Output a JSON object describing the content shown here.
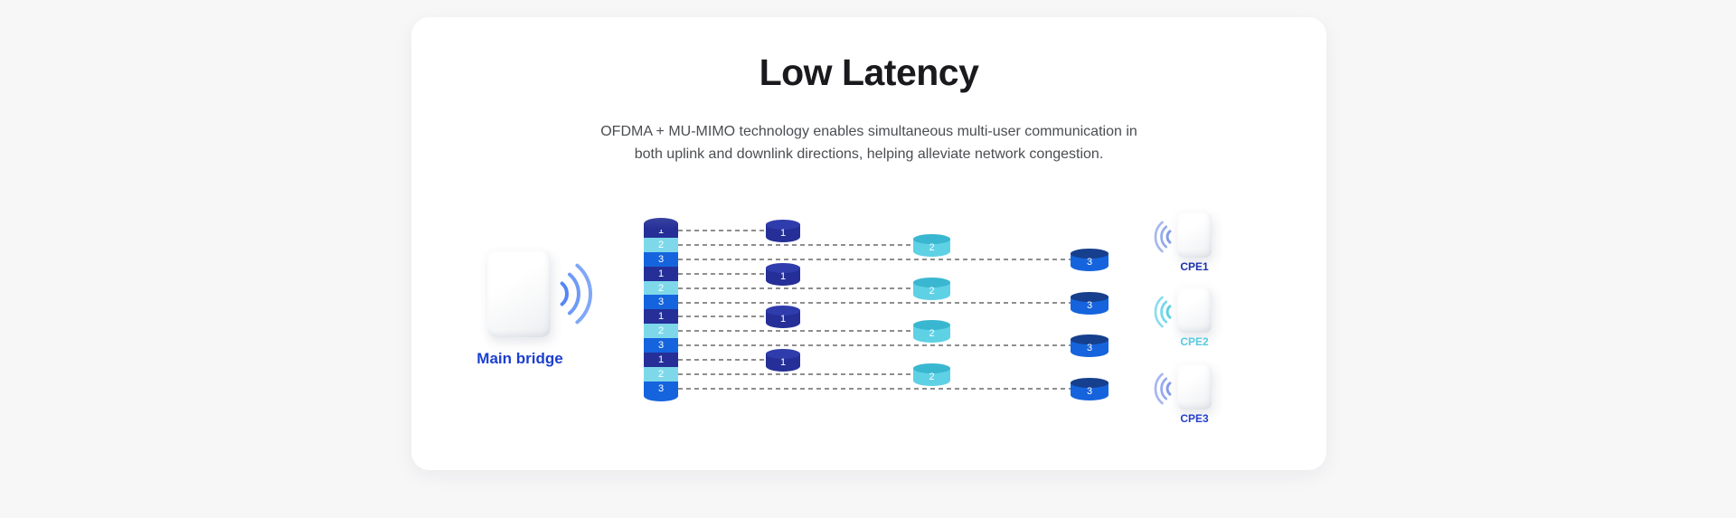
{
  "card": {
    "title": "Low Latency",
    "subtitle_line1": "OFDMA + MU-MIMO technology enables simultaneous multi-user communication in",
    "subtitle_line2": "both uplink and downlink directions, helping alleviate network congestion."
  },
  "diagram": {
    "main_bridge": {
      "label": "Main bridge",
      "label_color": "#1c3fd0"
    },
    "stack_sequence": [
      "1",
      "2",
      "3",
      "1",
      "2",
      "3",
      "1",
      "2",
      "3",
      "1",
      "2",
      "3"
    ],
    "resource_units": [
      {
        "id": "1",
        "body_color": "#252f97",
        "cap_color": "#2f3cac",
        "stack_band_color": "#252f97"
      },
      {
        "id": "2",
        "body_color": "#5fd1e5",
        "cap_color": "#3ab7d0",
        "stack_band_color": "#7ed8ea"
      },
      {
        "id": "3",
        "body_color": "#1564de",
        "cap_color": "#163f8d",
        "stack_band_color": "#1564de"
      }
    ],
    "cpes": [
      {
        "label": "CPE1",
        "label_color": "#1b34a8",
        "wave_color": "#7d99e5"
      },
      {
        "label": "CPE2",
        "label_color": "#57cbe0",
        "wave_color": "#55cfe3"
      },
      {
        "label": "CPE3",
        "label_color": "#2440c9",
        "wave_color": "#7e96eb"
      }
    ],
    "colors": {
      "page_bg": "#f7f7f8",
      "card_bg": "#ffffff",
      "title": "#1a1a1e",
      "subtitle": "#4b4d52",
      "dash_line": "#8e8e8e",
      "main_wave": "#4b81f4",
      "accent_blue": "#1c3fd0"
    }
  }
}
